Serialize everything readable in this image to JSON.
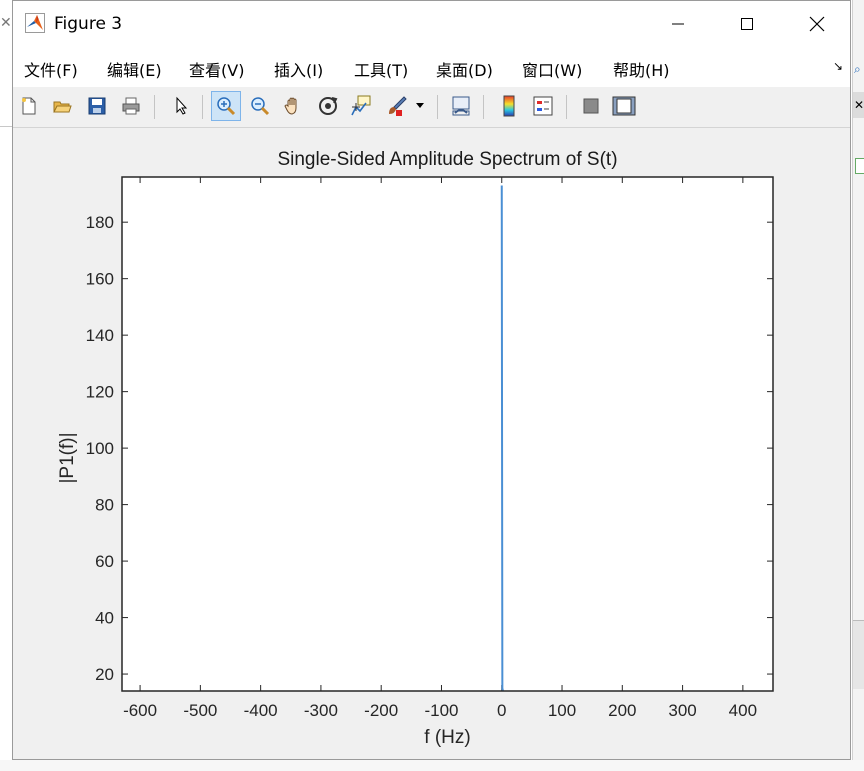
{
  "window": {
    "title": "Figure 3",
    "controls": {
      "minimize": "─",
      "maximize": "☐",
      "close": "✕"
    }
  },
  "menu": [
    {
      "label": "文件(F)"
    },
    {
      "label": "编辑(E)"
    },
    {
      "label": "查看(V)"
    },
    {
      "label": "插入(I)"
    },
    {
      "label": "工具(T)"
    },
    {
      "label": "桌面(D)"
    },
    {
      "label": "窗口(W)"
    },
    {
      "label": "帮助(H)"
    }
  ],
  "toolbar": {
    "icons": [
      "new-figure-icon",
      "open-file-icon",
      "save-icon",
      "print-icon",
      "edit-plot-arrow-icon",
      "zoom-in-icon",
      "zoom-out-icon",
      "pan-hand-icon",
      "rotate-3d-icon",
      "data-cursor-icon",
      "brush-icon",
      "link-plot-icon",
      "colorbar-icon",
      "legend-icon",
      "hide-plot-tools-icon",
      "show-plot-tools-icon"
    ],
    "active": "zoom-in-icon"
  },
  "colors": {
    "series": "#4a8fd4",
    "axes": "#262626",
    "figure_bg": "#f0f0f0",
    "axes_bg": "#ffffff"
  },
  "chart_data": {
    "type": "line",
    "title": "Single-Sided Amplitude Spectrum of S(t)",
    "xlabel": "f (Hz)",
    "ylabel": "|P1(f)|",
    "xlim": [
      -630,
      450
    ],
    "ylim": [
      14,
      196
    ],
    "xticks": [
      -600,
      -500,
      -400,
      -300,
      -200,
      -100,
      0,
      100,
      200,
      300,
      400
    ],
    "yticks": [
      20,
      40,
      60,
      80,
      100,
      120,
      140,
      160,
      180
    ],
    "grid": false,
    "series": [
      {
        "x": [
          0,
          1,
          2
        ],
        "y": [
          193,
          15,
          14
        ]
      }
    ]
  }
}
